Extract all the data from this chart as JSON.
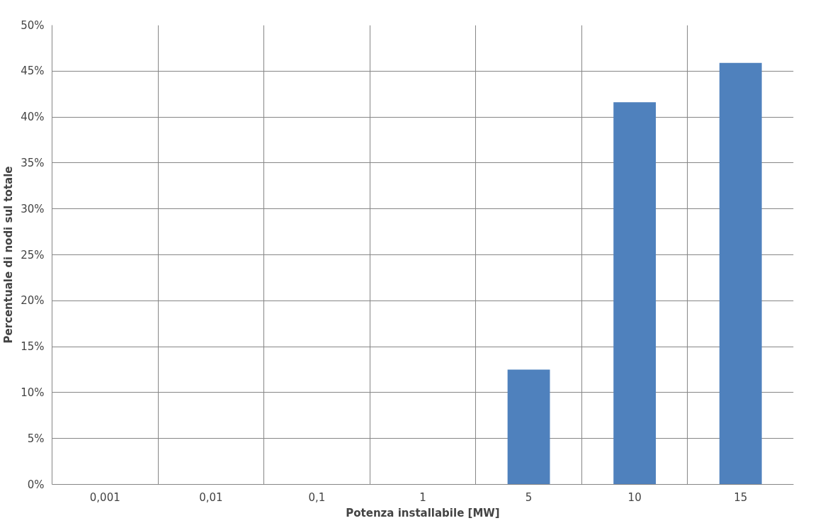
{
  "chart_data": {
    "type": "bar",
    "xlabel": "Potenza installabile [MW]",
    "ylabel": "Percentuale di nodi sul totale",
    "categories": [
      "0,001",
      "0,01",
      "0,1",
      "1",
      "5",
      "10",
      "15"
    ],
    "values": [
      0,
      0,
      0,
      0,
      12.5,
      41.6,
      45.9
    ],
    "color": "#4f81bd",
    "ylim": [
      0,
      50
    ],
    "yticks": [
      {
        "value": 0,
        "label": "0%"
      },
      {
        "value": 5,
        "label": "5%"
      },
      {
        "value": 10,
        "label": "10%"
      },
      {
        "value": 15,
        "label": "15%"
      },
      {
        "value": 20,
        "label": "20%"
      },
      {
        "value": 25,
        "label": "25%"
      },
      {
        "value": 30,
        "label": "30%"
      },
      {
        "value": 35,
        "label": "35%"
      },
      {
        "value": 40,
        "label": "40%"
      },
      {
        "value": 45,
        "label": "45%"
      },
      {
        "value": 50,
        "label": "50%"
      }
    ],
    "grid": true
  }
}
